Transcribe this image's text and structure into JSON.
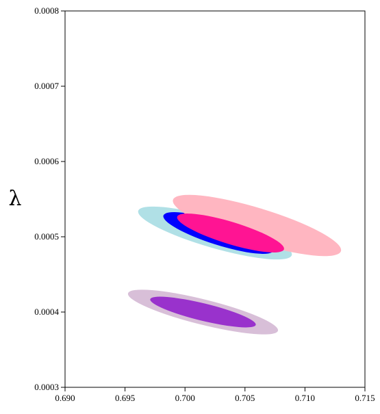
{
  "chart_data": {
    "type": "contour",
    "title": "",
    "xlabel": "",
    "ylabel": "λ",
    "xlim": [
      0.69,
      0.715
    ],
    "ylim": [
      0.0003,
      0.0008
    ],
    "grid": false,
    "legend": "none",
    "x_ticks": [
      "0.690",
      "0.695",
      "0.700",
      "0.705",
      "0.710",
      "0.715"
    ],
    "y_ticks": [
      "0.0003",
      "0.0004",
      "0.0005",
      "0.0006",
      "0.0007",
      "0.0008"
    ],
    "contours": [
      {
        "level": "outer",
        "color": "#b0e0e6",
        "center": [
          0.7025,
          0.000505
        ],
        "x_extent": [
          0.6958,
          0.7086
        ],
        "y_extent": [
          0.000455,
          0.00055
        ]
      },
      {
        "level": "inner",
        "color": "#0000ff",
        "center": [
          0.7028,
          0.000505
        ],
        "x_extent": [
          0.6983,
          0.7075
        ],
        "y_extent": [
          0.000465,
          0.00054
        ]
      },
      {
        "level": "outer",
        "color": "#ffb6c1",
        "center": [
          0.706,
          0.000515
        ],
        "x_extent": [
          0.6972,
          0.7112
        ],
        "y_extent": [
          0.000455,
          0.000565
        ]
      },
      {
        "level": "inner",
        "color": "#ff1493",
        "center": [
          0.7038,
          0.000505
        ],
        "x_extent": [
          0.6999,
          0.7088
        ],
        "y_extent": [
          0.000475,
          0.000545
        ]
      },
      {
        "level": "outer",
        "color": "#d8bfd8",
        "center": [
          0.7015,
          0.0004
        ],
        "x_extent": [
          0.6955,
          0.708
        ],
        "y_extent": [
          0.000365,
          0.000445
        ]
      },
      {
        "level": "inner",
        "color": "#9932cc",
        "center": [
          0.7015,
          0.0004
        ],
        "x_extent": [
          0.6975,
          0.7063
        ],
        "y_extent": [
          0.000375,
          0.00043
        ]
      }
    ]
  }
}
